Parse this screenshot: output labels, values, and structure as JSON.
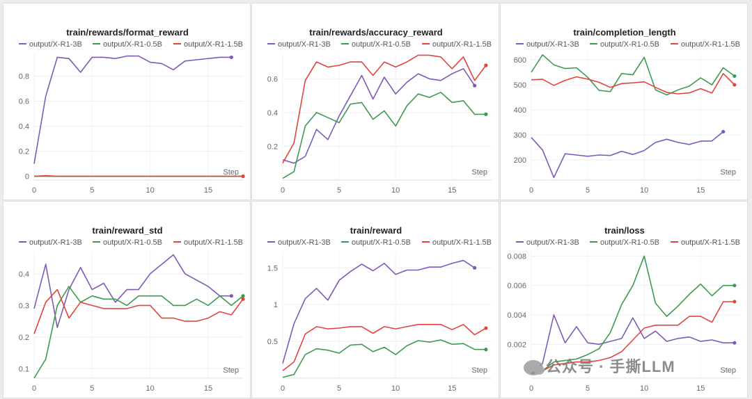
{
  "colors": {
    "purple": "#7e5ab8",
    "green": "#3f9a4f",
    "red": "#e0453d"
  },
  "watermark": "公众号 · 手撕LLM",
  "chart_data": [
    {
      "type": "line",
      "title": "train/rewards/format_reward",
      "xlabel": "Step",
      "xlim": [
        0,
        18
      ],
      "ylim": [
        -0.03,
        0.98
      ],
      "xticks": [
        0,
        5,
        10,
        15
      ],
      "yticks": [
        0,
        0.2,
        0.4,
        0.6,
        0.8
      ],
      "ytick_labels": [
        "0",
        "0.2",
        "0.4",
        "0.6",
        "0.8"
      ],
      "series": [
        {
          "name": "output/X-R1-3B",
          "color": "#7e5ab8",
          "x": [
            0,
            1,
            2,
            3,
            4,
            5,
            6,
            7,
            8,
            9,
            10,
            11,
            12,
            13,
            14,
            15,
            16,
            17
          ],
          "values": [
            0.1,
            0.64,
            0.95,
            0.94,
            0.83,
            0.95,
            0.95,
            0.94,
            0.96,
            0.96,
            0.91,
            0.9,
            0.85,
            0.92,
            0.93,
            0.94,
            0.95,
            0.95
          ]
        },
        {
          "name": "output/X-R1-0.5B",
          "color": "#3f9a4f",
          "x": [
            0,
            1,
            2,
            3,
            4,
            5,
            6,
            7,
            8,
            9,
            10,
            11,
            12,
            13,
            14,
            15,
            16,
            17,
            18
          ],
          "values": [
            0,
            0,
            0,
            0,
            0,
            0,
            0,
            0,
            0,
            0,
            0,
            0,
            0,
            0,
            0,
            0,
            0,
            0,
            0
          ]
        },
        {
          "name": "output/X-R1-1.5B",
          "color": "#e0453d",
          "x": [
            0,
            1,
            2,
            3,
            4,
            5,
            6,
            7,
            8,
            9,
            10,
            11,
            12,
            13,
            14,
            15,
            16,
            17,
            18
          ],
          "values": [
            0,
            0.005,
            0,
            0,
            0,
            0,
            0,
            0,
            0,
            0,
            0,
            0,
            0,
            0,
            0,
            0,
            0,
            0,
            0
          ]
        }
      ]
    },
    {
      "type": "line",
      "title": "train/rewards/accuracy_reward",
      "xlabel": "Step",
      "xlim": [
        0,
        18.5
      ],
      "ylim": [
        0,
        0.75
      ],
      "xticks": [
        0,
        5,
        10,
        15
      ],
      "yticks": [
        0.2,
        0.4,
        0.6
      ],
      "ytick_labels": [
        "0.2",
        "0.4",
        "0.6"
      ],
      "series": [
        {
          "name": "output/X-R1-3B",
          "color": "#7e5ab8",
          "x": [
            0,
            1,
            2,
            3,
            4,
            5,
            6,
            7,
            8,
            9,
            10,
            11,
            12,
            13,
            14,
            15,
            16,
            17
          ],
          "values": [
            0.12,
            0.1,
            0.14,
            0.3,
            0.24,
            0.38,
            0.5,
            0.62,
            0.48,
            0.61,
            0.51,
            0.58,
            0.63,
            0.6,
            0.59,
            0.63,
            0.66,
            0.56
          ]
        },
        {
          "name": "output/X-R1-0.5B",
          "color": "#3f9a4f",
          "x": [
            0,
            1,
            2,
            3,
            4,
            5,
            6,
            7,
            8,
            9,
            10,
            11,
            12,
            13,
            14,
            15,
            16,
            17,
            18
          ],
          "values": [
            0.01,
            0.05,
            0.32,
            0.4,
            0.37,
            0.34,
            0.45,
            0.46,
            0.36,
            0.41,
            0.32,
            0.44,
            0.51,
            0.49,
            0.52,
            0.46,
            0.47,
            0.39,
            0.39
          ]
        },
        {
          "name": "output/X-R1-1.5B",
          "color": "#e0453d",
          "x": [
            0,
            1,
            2,
            3,
            4,
            5,
            6,
            7,
            8,
            9,
            10,
            11,
            12,
            13,
            14,
            15,
            16,
            17,
            18
          ],
          "values": [
            0.1,
            0.22,
            0.59,
            0.7,
            0.67,
            0.68,
            0.7,
            0.7,
            0.62,
            0.7,
            0.67,
            0.7,
            0.74,
            0.74,
            0.73,
            0.66,
            0.73,
            0.59,
            0.68
          ]
        }
      ]
    },
    {
      "type": "line",
      "title": "train/completion_length",
      "xlabel": "Step",
      "xlim": [
        0,
        18.5
      ],
      "ylim": [
        120,
        625
      ],
      "xticks": [
        0,
        5,
        10,
        15
      ],
      "yticks": [
        200,
        300,
        400,
        500,
        600
      ],
      "ytick_labels": [
        "200",
        "300",
        "400",
        "500",
        "600"
      ],
      "series": [
        {
          "name": "output/X-R1-3B",
          "color": "#7e5ab8",
          "x": [
            0,
            1,
            2,
            3,
            4,
            5,
            6,
            7,
            8,
            9,
            10,
            11,
            12,
            13,
            14,
            15,
            16,
            17
          ],
          "values": [
            290,
            240,
            130,
            225,
            220,
            215,
            220,
            218,
            235,
            222,
            238,
            270,
            283,
            270,
            262,
            275,
            276,
            313
          ]
        },
        {
          "name": "output/X-R1-0.5B",
          "color": "#3f9a4f",
          "x": [
            0,
            1,
            2,
            3,
            4,
            5,
            6,
            7,
            8,
            9,
            10,
            11,
            12,
            13,
            14,
            15,
            16,
            17,
            18
          ],
          "values": [
            550,
            620,
            580,
            565,
            568,
            530,
            478,
            473,
            545,
            540,
            610,
            480,
            460,
            480,
            495,
            528,
            500,
            568,
            535
          ]
        },
        {
          "name": "output/X-R1-1.5B",
          "color": "#e0453d",
          "x": [
            0,
            1,
            2,
            3,
            4,
            5,
            6,
            7,
            8,
            9,
            10,
            11,
            12,
            13,
            14,
            15,
            16,
            17,
            18
          ],
          "values": [
            520,
            522,
            498,
            518,
            532,
            523,
            510,
            490,
            505,
            508,
            512,
            490,
            470,
            464,
            468,
            485,
            467,
            545,
            500
          ]
        }
      ]
    },
    {
      "type": "line",
      "title": "train/reward_std",
      "xlabel": "Step",
      "xlim": [
        0,
        18
      ],
      "ylim": [
        0.07,
        0.47
      ],
      "xticks": [
        0,
        5,
        10,
        15
      ],
      "yticks": [
        0.1,
        0.2,
        0.3,
        0.4
      ],
      "ytick_labels": [
        "0.1",
        "0.2",
        "0.3",
        "0.4"
      ],
      "series": [
        {
          "name": "output/X-R1-3B",
          "color": "#7e5ab8",
          "x": [
            0,
            1,
            2,
            3,
            4,
            5,
            6,
            7,
            8,
            9,
            10,
            11,
            12,
            13,
            14,
            15,
            16,
            17
          ],
          "values": [
            0.29,
            0.43,
            0.23,
            0.35,
            0.42,
            0.35,
            0.37,
            0.31,
            0.35,
            0.35,
            0.4,
            0.43,
            0.46,
            0.4,
            0.38,
            0.36,
            0.33,
            0.33
          ]
        },
        {
          "name": "output/X-R1-0.5B",
          "color": "#3f9a4f",
          "x": [
            0,
            1,
            2,
            3,
            4,
            5,
            6,
            7,
            8,
            9,
            10,
            11,
            12,
            13,
            14,
            15,
            16,
            17,
            18
          ],
          "values": [
            0.07,
            0.13,
            0.3,
            0.36,
            0.31,
            0.33,
            0.32,
            0.32,
            0.3,
            0.33,
            0.33,
            0.33,
            0.3,
            0.3,
            0.32,
            0.3,
            0.33,
            0.3,
            0.33
          ]
        },
        {
          "name": "output/X-R1-1.5B",
          "color": "#e0453d",
          "x": [
            0,
            1,
            2,
            3,
            4,
            5,
            6,
            7,
            8,
            9,
            10,
            11,
            12,
            13,
            14,
            15,
            16,
            17,
            18
          ],
          "values": [
            0.21,
            0.31,
            0.35,
            0.26,
            0.31,
            0.3,
            0.29,
            0.29,
            0.29,
            0.3,
            0.3,
            0.26,
            0.26,
            0.25,
            0.25,
            0.26,
            0.28,
            0.27,
            0.32
          ]
        }
      ]
    },
    {
      "type": "line",
      "title": "train/reward",
      "xlabel": "Step",
      "xlim": [
        0,
        18.5
      ],
      "ylim": [
        0,
        1.72
      ],
      "xticks": [
        0,
        5,
        10,
        15
      ],
      "yticks": [
        0.5,
        1,
        1.5
      ],
      "ytick_labels": [
        "0.5",
        "1",
        "1.5"
      ],
      "series": [
        {
          "name": "output/X-R1-3B",
          "color": "#7e5ab8",
          "x": [
            0,
            1,
            2,
            3,
            4,
            5,
            6,
            7,
            8,
            9,
            10,
            11,
            12,
            13,
            14,
            15,
            16,
            17
          ],
          "values": [
            0.2,
            0.74,
            1.08,
            1.22,
            1.06,
            1.33,
            1.45,
            1.55,
            1.46,
            1.56,
            1.41,
            1.47,
            1.47,
            1.51,
            1.51,
            1.56,
            1.6,
            1.5
          ]
        },
        {
          "name": "output/X-R1-0.5B",
          "color": "#3f9a4f",
          "x": [
            0,
            1,
            2,
            3,
            4,
            5,
            6,
            7,
            8,
            9,
            10,
            11,
            12,
            13,
            14,
            15,
            16,
            17,
            18
          ],
          "values": [
            0.01,
            0.05,
            0.32,
            0.4,
            0.38,
            0.34,
            0.45,
            0.46,
            0.36,
            0.42,
            0.32,
            0.44,
            0.51,
            0.49,
            0.52,
            0.46,
            0.47,
            0.39,
            0.39
          ]
        },
        {
          "name": "output/X-R1-1.5B",
          "color": "#e0453d",
          "x": [
            0,
            1,
            2,
            3,
            4,
            5,
            6,
            7,
            8,
            9,
            10,
            11,
            12,
            13,
            14,
            15,
            16,
            17,
            18
          ],
          "values": [
            0.1,
            0.22,
            0.6,
            0.7,
            0.67,
            0.68,
            0.7,
            0.7,
            0.61,
            0.7,
            0.67,
            0.7,
            0.73,
            0.73,
            0.73,
            0.66,
            0.73,
            0.59,
            0.68
          ]
        }
      ]
    },
    {
      "type": "line",
      "title": "train/loss",
      "xlabel": "Step",
      "xlim": [
        0,
        18.5
      ],
      "ylim": [
        -0.0003,
        0.0083
      ],
      "xticks": [
        0,
        5,
        10,
        15
      ],
      "yticks": [
        0.002,
        0.004,
        0.006,
        0.008
      ],
      "ytick_labels": [
        "0.002",
        "0.004",
        "0.006",
        "0.008"
      ],
      "series": [
        {
          "name": "output/X-R1-3B",
          "color": "#7e5ab8",
          "x": [
            0,
            1,
            2,
            3,
            4,
            5,
            6,
            7,
            8,
            9,
            10,
            11,
            12,
            13,
            14,
            15,
            16,
            17,
            18
          ],
          "values": [
            0,
            0.0007,
            0.004,
            0.0021,
            0.0032,
            0.0021,
            0.002,
            0.0022,
            0.0024,
            0.0038,
            0.0024,
            0.0029,
            0.0022,
            0.0024,
            0.0025,
            0.0022,
            0.0023,
            0.0021,
            0.0021
          ]
        },
        {
          "name": "output/X-R1-0.5B",
          "color": "#3f9a4f",
          "x": [
            0,
            1,
            2,
            3,
            4,
            5,
            6,
            7,
            8,
            9,
            10,
            11,
            12,
            13,
            14,
            15,
            16,
            17,
            18
          ],
          "values": [
            0,
            0.0002,
            0.0008,
            0.0009,
            0.001,
            0.0013,
            0.0017,
            0.0028,
            0.0047,
            0.006,
            0.008,
            0.0048,
            0.0039,
            0.0046,
            0.0054,
            0.0061,
            0.0053,
            0.006,
            0.006
          ]
        },
        {
          "name": "output/X-R1-1.5B",
          "color": "#e0453d",
          "x": [
            0,
            1,
            2,
            3,
            4,
            5,
            6,
            7,
            8,
            9,
            10,
            11,
            12,
            13,
            14,
            15,
            16,
            17,
            18
          ],
          "values": [
            0,
            0.0002,
            0.0006,
            0.0007,
            0.0008,
            0.0008,
            0.0009,
            0.0011,
            0.0015,
            0.0023,
            0.0031,
            0.0033,
            0.0033,
            0.0033,
            0.0039,
            0.0039,
            0.0035,
            0.0049,
            0.0049
          ]
        }
      ]
    }
  ]
}
